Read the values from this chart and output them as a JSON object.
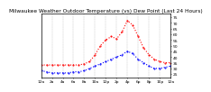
{
  "title": "Milwaukee Weather Outdoor Temperature (vs) Dew Point (Last 24 Hours)",
  "temp": [
    33,
    33,
    33,
    33,
    33,
    33,
    33,
    33,
    34,
    36,
    42,
    50,
    55,
    58,
    56,
    62,
    72,
    68,
    58,
    48,
    42,
    38,
    36,
    35,
    35
  ],
  "dew": [
    28,
    27,
    26,
    26,
    26,
    26,
    27,
    27,
    28,
    30,
    32,
    34,
    36,
    38,
    40,
    42,
    45,
    43,
    38,
    35,
    32,
    30,
    30,
    31,
    32
  ],
  "temp_color": "#ff0000",
  "dew_color": "#0000ff",
  "bg_color": "#ffffff",
  "grid_color": "#888888",
  "ylim": [
    22,
    78
  ],
  "yticks": [
    25,
    30,
    35,
    40,
    45,
    50,
    55,
    60,
    65,
    70,
    75
  ],
  "ytick_labels": [
    "25",
    "30",
    "35",
    "40",
    "45",
    "50",
    "55",
    "60",
    "65",
    "70",
    "75"
  ],
  "title_fontsize": 4.2,
  "tick_fontsize": 3.2,
  "n_points": 25
}
